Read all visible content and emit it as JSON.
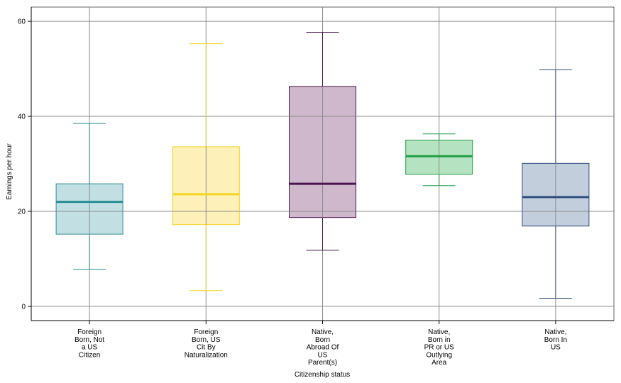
{
  "chart_data": {
    "type": "box",
    "xlabel": "Citizenship status",
    "ylabel": "Earnings per hour",
    "ylim": [
      -3,
      63
    ],
    "yticks": [
      0,
      20,
      40,
      60
    ],
    "grid": true,
    "categories": [
      [
        "Foreign",
        "Born, Not",
        "a US",
        "Citizen"
      ],
      [
        "Foreign",
        "Born, US",
        "Cit By",
        "Naturalization"
      ],
      [
        "Native,",
        "Born",
        "Abroad Of",
        "US",
        "Parent(s)"
      ],
      [
        "Native,",
        "Born in",
        "PR or US",
        "Outlying",
        "Area"
      ],
      [
        "Native,",
        "Born In",
        "US"
      ]
    ],
    "boxes": [
      {
        "whisker_low": 7.8,
        "q1": 15.2,
        "median": 22.0,
        "q3": 25.8,
        "whisker_high": 38.5,
        "color": "#2a8c96",
        "fill": "#c2e0e3"
      },
      {
        "whisker_low": 3.3,
        "q1": 17.2,
        "median": 23.6,
        "q3": 33.6,
        "whisker_high": 55.3,
        "color": "#f5d31e",
        "fill": "#fdf0b8"
      },
      {
        "whisker_low": 11.8,
        "q1": 18.7,
        "median": 25.8,
        "q3": 46.3,
        "whisker_high": 57.7,
        "color": "#4a1450",
        "fill": "#cfb8cc"
      },
      {
        "whisker_low": 25.4,
        "q1": 27.8,
        "median": 31.6,
        "q3": 35.0,
        "whisker_high": 36.3,
        "color": "#1f9e45",
        "fill": "#b5e3c2"
      },
      {
        "whisker_low": 1.7,
        "q1": 16.9,
        "median": 23.0,
        "q3": 30.1,
        "whisker_high": 49.8,
        "color": "#2e4d7e",
        "fill": "#c3cedd"
      }
    ]
  }
}
